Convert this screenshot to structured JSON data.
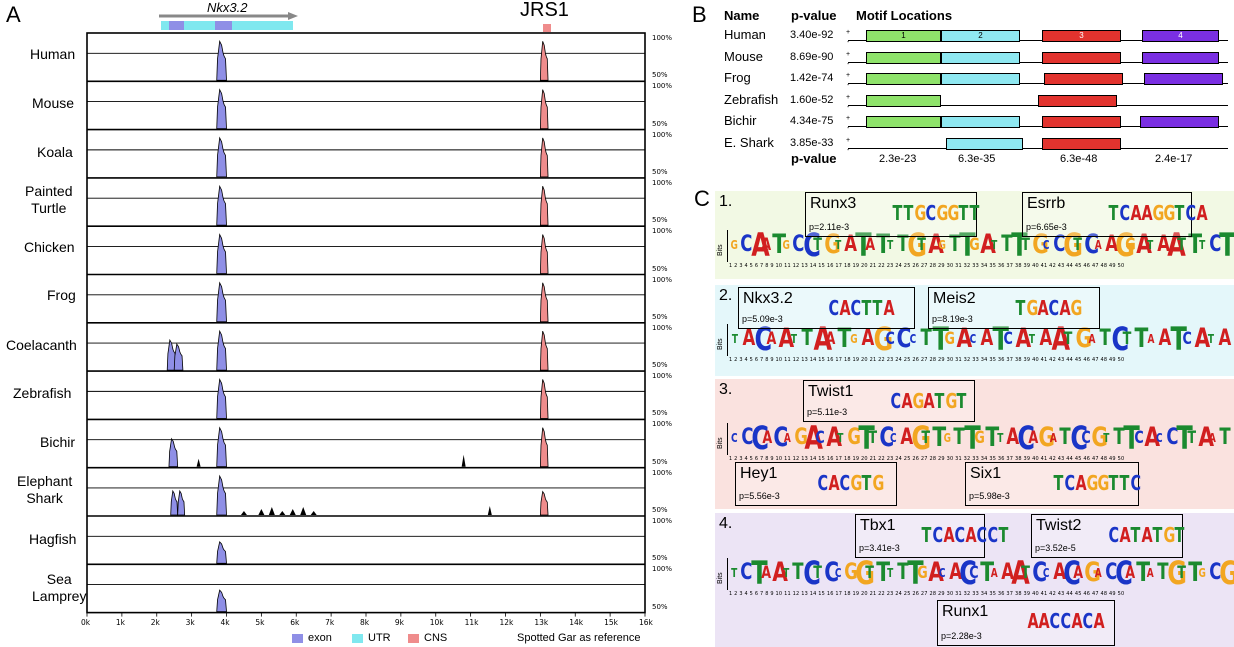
{
  "panelA": {
    "letter": "A",
    "gene_label": "Nkx3.2",
    "jrs_label": "JRS1",
    "pct_top": "100%",
    "pct_bottom": "50%",
    "species": [
      "Human",
      "Mouse",
      "Koala",
      "Painted\nTurtle",
      "Chicken",
      "Frog",
      "Coelacanth",
      "Zebrafish",
      "Bichir",
      "Elephant\nShark",
      "Hagfish",
      "Sea\nLamprey"
    ],
    "ticks": [
      "0k",
      "1k",
      "2k",
      "3k",
      "4k",
      "5k",
      "6k",
      "7k",
      "8k",
      "9k",
      "10k",
      "11k",
      "12k",
      "13k",
      "14k",
      "15k",
      "16k"
    ],
    "legend": [
      {
        "label": "exon",
        "color": "#8f8fe6"
      },
      {
        "label": "UTR",
        "color": "#7fe8ef"
      },
      {
        "label": "CNS",
        "color": "#ef8c8c"
      }
    ],
    "reference": "Spotted Gar as reference"
  },
  "panelB": {
    "letter": "B",
    "col_name": "Name",
    "col_pvalue": "p-value",
    "col_motif": "Motif Locations",
    "rows": [
      {
        "name": "Human",
        "p": "3.40e-92"
      },
      {
        "name": "Mouse",
        "p": "8.69e-90"
      },
      {
        "name": "Frog",
        "p": "1.42e-74"
      },
      {
        "name": "Zebrafish",
        "p": "1.60e-52"
      },
      {
        "name": "Bichir",
        "p": "4.34e-75"
      },
      {
        "name": "E. Shark",
        "p": "3.85e-33"
      }
    ],
    "motif_numbers": [
      "1",
      "2",
      "3",
      "4"
    ],
    "motif_colors": [
      "#8fe36b",
      "#8fe8f1",
      "#e2332e",
      "#7a2fe2"
    ],
    "footer_label": "p-value",
    "footer_values": [
      "2.3e-23",
      "6.3e-35",
      "6.3e-48",
      "2.4e-17"
    ]
  },
  "panelC": {
    "letter": "C",
    "bits_label": "Bits",
    "blocks": [
      {
        "num": "1.",
        "bg": "#f2f9e4",
        "seq": "GCAATGCCTGTATATTTGTAGTTGATTTTGCCGTCAAGGATAATTTCT",
        "tfs": [
          {
            "name": "Runx3",
            "p": "p=2.11e-3",
            "motif": "TTGCGGTT"
          },
          {
            "name": "Esrrb",
            "p": "p=6.65e-3",
            "motif": "TCAAGGTCA"
          }
        ]
      },
      {
        "num": "2.",
        "bg": "#e4f7fa",
        "seq": "TACAATTAATGAGCCCTTGACATCATAATGATCTTAATCATA",
        "tfs": [
          {
            "name": "Nkx3.2",
            "p": "p=5.09e-3",
            "motif": "CACTTA"
          },
          {
            "name": "Meis2",
            "p": "p=8.19e-3",
            "motif": "TGACAG"
          }
        ]
      },
      {
        "num": "3.",
        "bg": "#fae2df",
        "seq": "CCCACAGACATGTTCCAGTTGTTGTTACAGATCCGTTTCACCTTAAT",
        "tfs": [
          {
            "name": "Twist1",
            "p": "p=5.11e-3",
            "motif": "CAGATGT"
          },
          {
            "name": "Hey1",
            "p": "p=5.56e-3",
            "motif": "CACGTG"
          },
          {
            "name": "Six1",
            "p": "p=5.98e-3",
            "motif": "TCAGGTTC"
          }
        ]
      },
      {
        "num": "4.",
        "bg": "#ece4f5",
        "seq": "TCTAATTCTCCGGTTTTTGACACCTAAATCCACAGACCATATGTTGCG",
        "tfs": [
          {
            "name": "Tbx1",
            "p": "p=3.41e-3",
            "motif": "TCACACCT"
          },
          {
            "name": "Twist2",
            "p": "p=3.52e-5",
            "motif": "CATATGT"
          },
          {
            "name": "Runx1",
            "p": "p=2.28e-3",
            "motif": "AACCACA"
          }
        ]
      }
    ]
  }
}
